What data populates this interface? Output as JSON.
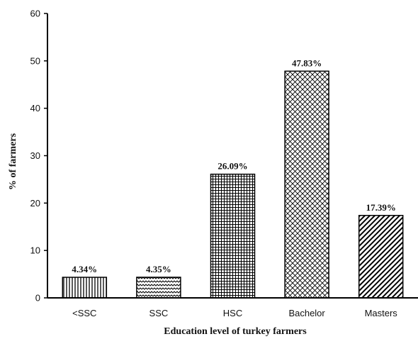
{
  "chart_data": {
    "type": "bar",
    "categories": [
      "<SSC",
      "SSC",
      "HSC",
      "Bachelor",
      "Masters"
    ],
    "values": [
      4.34,
      4.35,
      26.09,
      47.83,
      17.39
    ],
    "data_labels": [
      "4.34%",
      "4.35%",
      "26.09%",
      "47.83%",
      "17.39%"
    ],
    "patterns": [
      "vertical-lines",
      "waves",
      "grid",
      "crosshatch",
      "diagonal-lines"
    ],
    "xlabel": "Education level of turkey farmers",
    "ylabel": "% of farmers",
    "ylim": [
      0,
      60
    ],
    "yticks": [
      0,
      10,
      20,
      30,
      40,
      50,
      60
    ],
    "grid": false,
    "bar_fill": "#ffffff",
    "bar_stroke": "#000000"
  }
}
